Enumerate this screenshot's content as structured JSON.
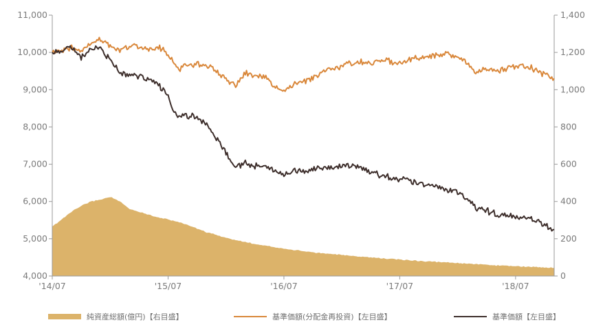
{
  "chart_data": {
    "type": "line",
    "title": "",
    "xlabel": "",
    "ylabel_left": "",
    "ylabel_right": "",
    "x_ticks": [
      "'14/07",
      "'15/07",
      "'16/07",
      "'17/07",
      "'18/07"
    ],
    "x_tick_dates": [
      "2014-07",
      "2015-07",
      "2016-07",
      "2017-07",
      "2018-07"
    ],
    "x_range": [
      "2014-07",
      "2018-11"
    ],
    "y_left": {
      "range": [
        4000,
        11000
      ],
      "ticks": [
        4000,
        5000,
        6000,
        7000,
        8000,
        9000,
        10000,
        11000
      ],
      "tick_labels": [
        "4,000",
        "5,000",
        "6,000",
        "7,000",
        "8,000",
        "9,000",
        "10,000",
        "11,000"
      ]
    },
    "y_right": {
      "range": [
        0,
        1400
      ],
      "ticks": [
        0,
        200,
        400,
        600,
        800,
        1000,
        1200,
        1400
      ],
      "tick_labels": [
        "0",
        "200",
        "400",
        "600",
        "800",
        "1,000",
        "1,200",
        "1,400"
      ]
    },
    "grid": false,
    "legend_position": "bottom",
    "legend": [
      {
        "label": "純資産総額(億円)【右目盛】",
        "kind": "area",
        "color": "#dcb36a"
      },
      {
        "label": "基準価額(分配金再投資)【左目盛】",
        "kind": "line",
        "color": "#d9873a"
      },
      {
        "label": "基準価額【左目盛】",
        "kind": "line",
        "color": "#3d2e2b"
      }
    ],
    "series": [
      {
        "name": "純資産総額(億円)【右目盛】",
        "type": "area",
        "axis": "right",
        "color": "#dcb36a",
        "points": [
          [
            "2014-07",
            265
          ],
          [
            "2014-08",
            305
          ],
          [
            "2014-09",
            345
          ],
          [
            "2014-10",
            375
          ],
          [
            "2014-11",
            400
          ],
          [
            "2014-12",
            410
          ],
          [
            "2015-01",
            425
          ],
          [
            "2015-02",
            400
          ],
          [
            "2015-03",
            360
          ],
          [
            "2015-04",
            345
          ],
          [
            "2015-05",
            330
          ],
          [
            "2015-06",
            315
          ],
          [
            "2015-07",
            305
          ],
          [
            "2015-08",
            290
          ],
          [
            "2015-09",
            275
          ],
          [
            "2015-10",
            255
          ],
          [
            "2015-11",
            235
          ],
          [
            "2015-12",
            220
          ],
          [
            "2016-01",
            205
          ],
          [
            "2016-02",
            192
          ],
          [
            "2016-03",
            182
          ],
          [
            "2016-04",
            172
          ],
          [
            "2016-05",
            165
          ],
          [
            "2016-06",
            155
          ],
          [
            "2016-07",
            148
          ],
          [
            "2016-08",
            140
          ],
          [
            "2016-09",
            133
          ],
          [
            "2016-10",
            127
          ],
          [
            "2016-11",
            122
          ],
          [
            "2016-12",
            118
          ],
          [
            "2017-01",
            113
          ],
          [
            "2017-02",
            108
          ],
          [
            "2017-03",
            104
          ],
          [
            "2017-04",
            100
          ],
          [
            "2017-05",
            96
          ],
          [
            "2017-06",
            92
          ],
          [
            "2017-07",
            88
          ],
          [
            "2017-08",
            85
          ],
          [
            "2017-09",
            81
          ],
          [
            "2017-10",
            78
          ],
          [
            "2017-11",
            75
          ],
          [
            "2017-12",
            72
          ],
          [
            "2018-01",
            69
          ],
          [
            "2018-02",
            66
          ],
          [
            "2018-03",
            63
          ],
          [
            "2018-04",
            60
          ],
          [
            "2018-05",
            57
          ],
          [
            "2018-06",
            55
          ],
          [
            "2018-07",
            52
          ],
          [
            "2018-08",
            50
          ],
          [
            "2018-09",
            48
          ],
          [
            "2018-10",
            46
          ],
          [
            "2018-11",
            44
          ]
        ]
      },
      {
        "name": "基準価額(分配金再投資)【左目盛】",
        "type": "line",
        "axis": "left",
        "color": "#d9873a",
        "points": [
          [
            "2014-07",
            10000
          ],
          [
            "2014-08",
            10050
          ],
          [
            "2014-09",
            10150
          ],
          [
            "2014-10",
            10000
          ],
          [
            "2014-11",
            10250
          ],
          [
            "2014-12",
            10350
          ],
          [
            "2015-01",
            10150
          ],
          [
            "2015-02",
            10050
          ],
          [
            "2015-03",
            10200
          ],
          [
            "2015-04",
            10150
          ],
          [
            "2015-05",
            10100
          ],
          [
            "2015-06",
            10150
          ],
          [
            "2015-07",
            9950
          ],
          [
            "2015-08",
            9550
          ],
          [
            "2015-09",
            9650
          ],
          [
            "2015-10",
            9700
          ],
          [
            "2015-11",
            9650
          ],
          [
            "2015-12",
            9500
          ],
          [
            "2016-01",
            9250
          ],
          [
            "2016-02",
            9100
          ],
          [
            "2016-03",
            9450
          ],
          [
            "2016-04",
            9350
          ],
          [
            "2016-05",
            9350
          ],
          [
            "2016-06",
            9100
          ],
          [
            "2016-07",
            8950
          ],
          [
            "2016-08",
            9150
          ],
          [
            "2016-09",
            9200
          ],
          [
            "2016-10",
            9300
          ],
          [
            "2016-11",
            9450
          ],
          [
            "2016-12",
            9550
          ],
          [
            "2017-01",
            9650
          ],
          [
            "2017-02",
            9700
          ],
          [
            "2017-03",
            9750
          ],
          [
            "2017-04",
            9700
          ],
          [
            "2017-05",
            9800
          ],
          [
            "2017-06",
            9750
          ],
          [
            "2017-07",
            9750
          ],
          [
            "2017-08",
            9800
          ],
          [
            "2017-09",
            9850
          ],
          [
            "2017-10",
            9900
          ],
          [
            "2017-11",
            9950
          ],
          [
            "2017-12",
            9950
          ],
          [
            "2018-01",
            9900
          ],
          [
            "2018-02",
            9700
          ],
          [
            "2018-03",
            9450
          ],
          [
            "2018-04",
            9550
          ],
          [
            "2018-05",
            9500
          ],
          [
            "2018-06",
            9550
          ],
          [
            "2018-07",
            9650
          ],
          [
            "2018-08",
            9600
          ],
          [
            "2018-09",
            9550
          ],
          [
            "2018-10",
            9400
          ],
          [
            "2018-11",
            9300
          ]
        ]
      },
      {
        "name": "基準価額【左目盛】",
        "type": "line",
        "axis": "left",
        "color": "#3d2e2b",
        "points": [
          [
            "2014-07",
            10000
          ],
          [
            "2014-08",
            10050
          ],
          [
            "2014-09",
            10150
          ],
          [
            "2014-10",
            9850
          ],
          [
            "2014-11",
            10100
          ],
          [
            "2014-12",
            10100
          ],
          [
            "2015-01",
            9800
          ],
          [
            "2015-02",
            9450
          ],
          [
            "2015-03",
            9400
          ],
          [
            "2015-04",
            9350
          ],
          [
            "2015-05",
            9250
          ],
          [
            "2015-06",
            9150
          ],
          [
            "2015-07",
            8800
          ],
          [
            "2015-08",
            8250
          ],
          [
            "2015-09",
            8300
          ],
          [
            "2015-10",
            8250
          ],
          [
            "2015-11",
            8050
          ],
          [
            "2015-12",
            7700
          ],
          [
            "2016-01",
            7300
          ],
          [
            "2016-02",
            6900
          ],
          [
            "2016-03",
            7050
          ],
          [
            "2016-04",
            6950
          ],
          [
            "2016-05",
            6950
          ],
          [
            "2016-06",
            6850
          ],
          [
            "2016-07",
            6700
          ],
          [
            "2016-08",
            6850
          ],
          [
            "2016-09",
            6800
          ],
          [
            "2016-10",
            6850
          ],
          [
            "2016-11",
            6900
          ],
          [
            "2016-12",
            6900
          ],
          [
            "2017-01",
            6950
          ],
          [
            "2017-02",
            6950
          ],
          [
            "2017-03",
            6900
          ],
          [
            "2017-04",
            6800
          ],
          [
            "2017-05",
            6700
          ],
          [
            "2017-06",
            6650
          ],
          [
            "2017-07",
            6600
          ],
          [
            "2017-08",
            6550
          ],
          [
            "2017-09",
            6500
          ],
          [
            "2017-10",
            6450
          ],
          [
            "2017-11",
            6400
          ],
          [
            "2017-12",
            6300
          ],
          [
            "2018-01",
            6250
          ],
          [
            "2018-02",
            6050
          ],
          [
            "2018-03",
            5800
          ],
          [
            "2018-04",
            5750
          ],
          [
            "2018-05",
            5650
          ],
          [
            "2018-06",
            5650
          ],
          [
            "2018-07",
            5600
          ],
          [
            "2018-08",
            5550
          ],
          [
            "2018-09",
            5500
          ],
          [
            "2018-10",
            5350
          ],
          [
            "2018-11",
            5250
          ]
        ]
      }
    ]
  }
}
